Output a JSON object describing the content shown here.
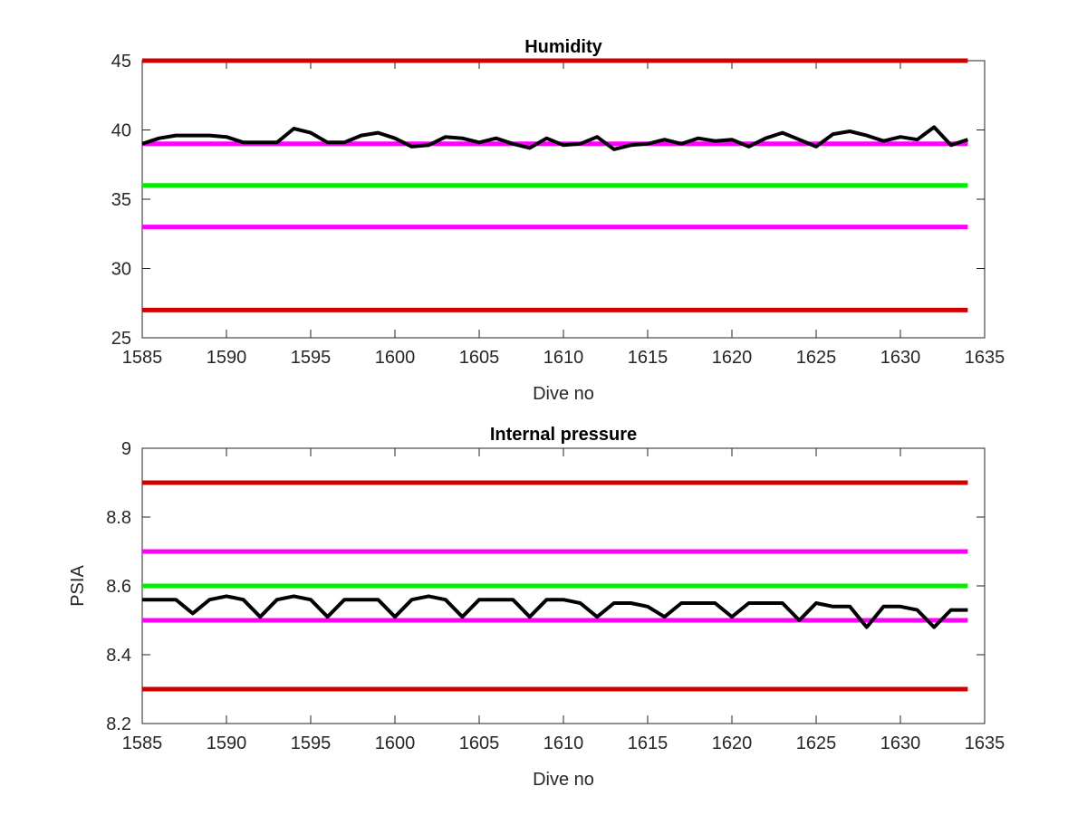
{
  "chart_data": [
    {
      "type": "line",
      "title": "Humidity",
      "xlabel": "Dive no",
      "ylabel": "",
      "xlim": [
        1585,
        1635
      ],
      "ylim": [
        25,
        45
      ],
      "xticks": [
        "1585",
        "1590",
        "1595",
        "1600",
        "1605",
        "1610",
        "1615",
        "1620",
        "1625",
        "1630",
        "1635"
      ],
      "yticks": [
        "25",
        "30",
        "35",
        "40",
        "45"
      ],
      "reference_lines": [
        {
          "y": 45,
          "color": "#d00000"
        },
        {
          "y": 39,
          "color": "#ff00ff"
        },
        {
          "y": 36,
          "color": "#00ee00"
        },
        {
          "y": 33,
          "color": "#ff00ff"
        },
        {
          "y": 27,
          "color": "#d00000"
        }
      ],
      "series": [
        {
          "color": "#000000",
          "x": [
            1585,
            1586,
            1587,
            1588,
            1589,
            1590,
            1591,
            1592,
            1593,
            1594,
            1595,
            1596,
            1597,
            1598,
            1599,
            1600,
            1601,
            1602,
            1603,
            1604,
            1605,
            1606,
            1607,
            1608,
            1609,
            1610,
            1611,
            1612,
            1613,
            1614,
            1615,
            1616,
            1617,
            1618,
            1619,
            1620,
            1621,
            1622,
            1623,
            1624,
            1625,
            1626,
            1627,
            1628,
            1629,
            1630,
            1631,
            1632,
            1633,
            1634
          ],
          "y": [
            39.0,
            39.4,
            39.6,
            39.6,
            39.6,
            39.5,
            39.1,
            39.1,
            39.1,
            40.1,
            39.8,
            39.1,
            39.1,
            39.6,
            39.8,
            39.4,
            38.8,
            38.9,
            39.5,
            39.4,
            39.1,
            39.4,
            39.0,
            38.7,
            39.4,
            38.9,
            39.0,
            39.5,
            38.6,
            38.9,
            39.0,
            39.3,
            39.0,
            39.4,
            39.2,
            39.3,
            38.8,
            39.4,
            39.8,
            39.3,
            38.8,
            39.7,
            39.9,
            39.6,
            39.2,
            39.5,
            39.3,
            40.2,
            38.9,
            39.3
          ]
        }
      ]
    },
    {
      "type": "line",
      "title": "Internal pressure",
      "xlabel": "Dive no",
      "ylabel": "PSIA",
      "xlim": [
        1585,
        1635
      ],
      "ylim": [
        8.2,
        9
      ],
      "xticks": [
        "1585",
        "1590",
        "1595",
        "1600",
        "1605",
        "1610",
        "1615",
        "1620",
        "1625",
        "1630",
        "1635"
      ],
      "yticks": [
        "8.2",
        "8.4",
        "8.6",
        "8.8",
        "9"
      ],
      "reference_lines": [
        {
          "y": 8.9,
          "color": "#d00000"
        },
        {
          "y": 8.7,
          "color": "#ff00ff"
        },
        {
          "y": 8.6,
          "color": "#00ee00"
        },
        {
          "y": 8.5,
          "color": "#ff00ff"
        },
        {
          "y": 8.3,
          "color": "#d00000"
        }
      ],
      "series": [
        {
          "color": "#000000",
          "x": [
            1585,
            1586,
            1587,
            1588,
            1589,
            1590,
            1591,
            1592,
            1593,
            1594,
            1595,
            1596,
            1597,
            1598,
            1599,
            1600,
            1601,
            1602,
            1603,
            1604,
            1605,
            1606,
            1607,
            1608,
            1609,
            1610,
            1611,
            1612,
            1613,
            1614,
            1615,
            1616,
            1617,
            1618,
            1619,
            1620,
            1621,
            1622,
            1623,
            1624,
            1625,
            1626,
            1627,
            1628,
            1629,
            1630,
            1631,
            1632,
            1633,
            1634
          ],
          "y": [
            8.56,
            8.56,
            8.56,
            8.52,
            8.56,
            8.57,
            8.56,
            8.51,
            8.56,
            8.57,
            8.56,
            8.51,
            8.56,
            8.56,
            8.56,
            8.51,
            8.56,
            8.57,
            8.56,
            8.51,
            8.56,
            8.56,
            8.56,
            8.51,
            8.56,
            8.56,
            8.55,
            8.51,
            8.55,
            8.55,
            8.54,
            8.51,
            8.55,
            8.55,
            8.55,
            8.51,
            8.55,
            8.55,
            8.55,
            8.5,
            8.55,
            8.54,
            8.54,
            8.48,
            8.54,
            8.54,
            8.53,
            8.48,
            8.53,
            8.53
          ]
        }
      ]
    }
  ]
}
